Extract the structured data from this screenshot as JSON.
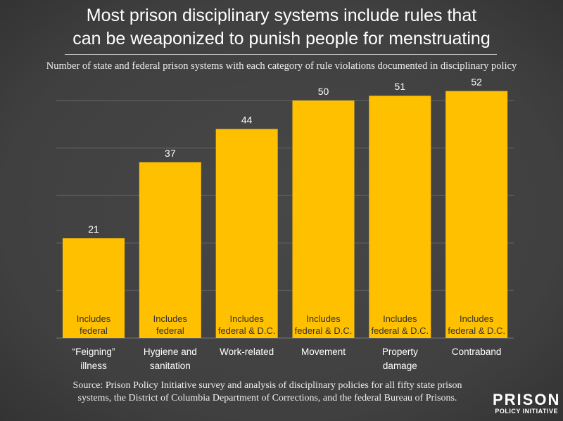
{
  "title_line1": "Most prison disciplinary systems include rules that",
  "title_line2": "can be weaponized to punish people for menstruating",
  "subtitle": "Number of state and federal prison systems with each category of rule violations documented in disciplinary policy",
  "source_line1": "Source: Prison Policy Initiative survey and analysis of disciplinary policies for all fifty state prison",
  "source_line2": "systems, the District of Columbia Department of Corrections, and the federal Bureau of Prisons.",
  "logo": {
    "line1": "PRISON",
    "line2": "POLICY INITIATIVE"
  },
  "chart_data": {
    "type": "bar",
    "categories": [
      [
        "“Feigning”",
        "illness"
      ],
      [
        "Hygiene and",
        "sanitation"
      ],
      [
        "Work-related"
      ],
      [
        "Movement"
      ],
      [
        "Property",
        "damage"
      ],
      [
        "Contraband"
      ]
    ],
    "values": [
      21,
      37,
      44,
      50,
      51,
      52
    ],
    "bar_notes": [
      [
        "Includes",
        "federal"
      ],
      [
        "Includes",
        "federal"
      ],
      [
        "Includes",
        "federal & D.C."
      ],
      [
        "Includes",
        "federal & D.C."
      ],
      [
        "Includes",
        "federal & D.C."
      ],
      [
        "Includes",
        "federal & D.C."
      ]
    ],
    "ylim": [
      0,
      55
    ],
    "grid_step": 10,
    "grid": true,
    "bar_color": "#FFC000",
    "background": "#444444"
  }
}
